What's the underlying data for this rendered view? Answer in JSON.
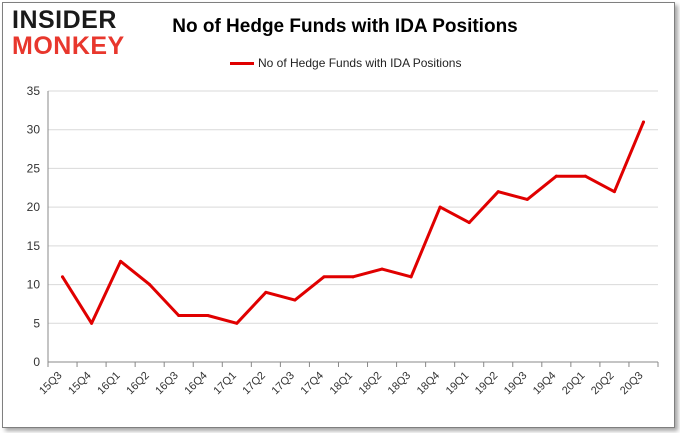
{
  "logo": {
    "line1": "INSIDER",
    "line2": "MONKEY"
  },
  "colors": {
    "series": "#e00000",
    "grid": "#d9d9d9",
    "logo_accent": "#e8372d"
  },
  "chart_data": {
    "type": "line",
    "title": "No of Hedge Funds with IDA Positions",
    "xlabel": "",
    "ylabel": "",
    "ylim": [
      0,
      35
    ],
    "yticks": [
      0,
      5,
      10,
      15,
      20,
      25,
      30,
      35
    ],
    "grid": true,
    "legend_position": "top-center",
    "categories": [
      "15Q3",
      "15Q4",
      "16Q1",
      "16Q2",
      "16Q3",
      "16Q4",
      "17Q1",
      "17Q2",
      "17Q3",
      "17Q4",
      "18Q1",
      "18Q2",
      "18Q3",
      "18Q4",
      "19Q1",
      "19Q2",
      "19Q3",
      "19Q4",
      "20Q1",
      "20Q2",
      "20Q3"
    ],
    "series": [
      {
        "name": "No of Hedge Funds with IDA Positions",
        "values": [
          11,
          5,
          13,
          10,
          6,
          6,
          5,
          9,
          8,
          11,
          11,
          12,
          11,
          20,
          18,
          22,
          21,
          24,
          24,
          22,
          31
        ]
      }
    ]
  }
}
